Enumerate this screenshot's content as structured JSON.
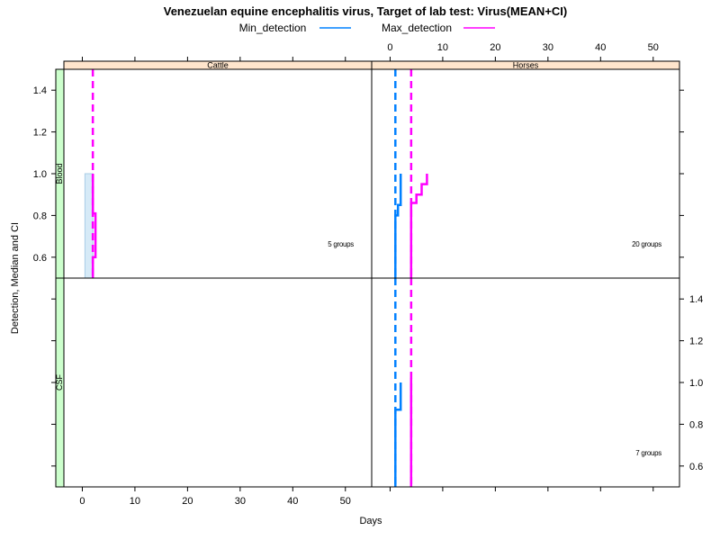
{
  "chart_data": {
    "type": "line",
    "title": "Venezuelan equine encephalitis virus, Target of lab test: Virus(MEAN+CI)",
    "xlabel": "Days",
    "ylabel": "Detection, Median and CI",
    "xlim": [
      -3.5,
      55
    ],
    "ylim": [
      0.5,
      1.5
    ],
    "x_ticks": [
      0,
      10,
      20,
      30,
      40,
      50
    ],
    "y_ticks": [
      0.6,
      0.8,
      1.0,
      1.2,
      1.4
    ],
    "legend": {
      "placement": "top",
      "entries": [
        {
          "name": "Min_detection",
          "color": "#0080ff"
        },
        {
          "name": "Max_detection",
          "color": "#ff00ff"
        }
      ]
    },
    "columns": [
      "Cattle",
      "Horses"
    ],
    "rows": [
      "Blood",
      "CSF"
    ],
    "panels": [
      {
        "column": "Cattle",
        "row": "Blood",
        "note": "5 groups",
        "median_lines": [
          {
            "series": "Max_detection",
            "x": 2
          }
        ],
        "ci_rect": {
          "x0": 0.5,
          "x1": 2,
          "y0": 0.5,
          "y1": 1.0
        },
        "steps": [
          {
            "series": "Max_detection",
            "points": [
              [
                2,
                0.5
              ],
              [
                2,
                0.6
              ],
              [
                2.5,
                0.6
              ],
              [
                2.5,
                0.81
              ],
              [
                2,
                0.81
              ],
              [
                2,
                1.0
              ]
            ]
          }
        ]
      },
      {
        "column": "Horses",
        "row": "Blood",
        "note": "20 groups",
        "median_lines": [
          {
            "series": "Min_detection",
            "x": 1
          },
          {
            "series": "Max_detection",
            "x": 4
          }
        ],
        "steps": [
          {
            "series": "Min_detection",
            "points": [
              [
                1,
                0.5
              ],
              [
                1,
                0.8
              ],
              [
                1.5,
                0.8
              ],
              [
                1.5,
                0.85
              ],
              [
                2,
                0.85
              ],
              [
                2,
                1.0
              ]
            ]
          },
          {
            "series": "Max_detection",
            "points": [
              [
                4,
                0.5
              ],
              [
                4,
                0.86
              ],
              [
                5,
                0.86
              ],
              [
                5,
                0.9
              ],
              [
                6,
                0.9
              ],
              [
                6,
                0.95
              ],
              [
                7,
                0.95
              ],
              [
                7,
                1.0
              ]
            ]
          }
        ]
      },
      {
        "column": "Cattle",
        "row": "CSF",
        "note": "",
        "median_lines": [],
        "steps": []
      },
      {
        "column": "Horses",
        "row": "CSF",
        "note": "7 groups",
        "median_lines": [
          {
            "series": "Min_detection",
            "x": 1
          },
          {
            "series": "Max_detection",
            "x": 4
          }
        ],
        "steps": [
          {
            "series": "Min_detection",
            "points": [
              [
                1,
                0.5
              ],
              [
                1,
                0.87
              ],
              [
                2,
                0.87
              ],
              [
                2,
                1.0
              ]
            ]
          },
          {
            "series": "Max_detection",
            "points": [
              [
                4,
                0.5
              ],
              [
                4,
                1.02
              ]
            ]
          }
        ]
      }
    ]
  }
}
